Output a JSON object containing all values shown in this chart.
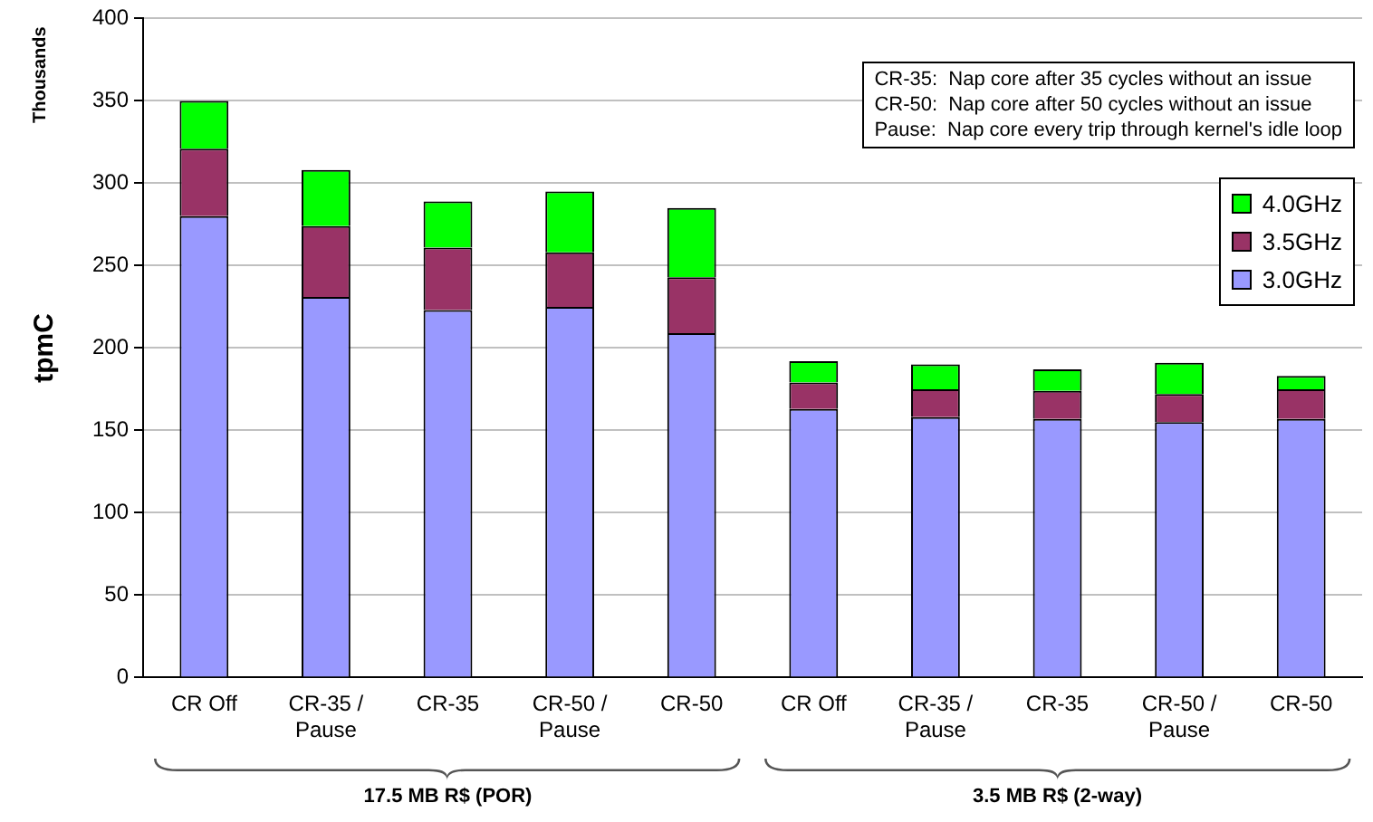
{
  "chart_data": {
    "type": "bar",
    "stacked": true,
    "ylabel": "tpmC",
    "categories": [
      "CR Off",
      "CR-35 /\nPause",
      "CR-35",
      "CR-50 /\nPause",
      "CR-50",
      "CR Off",
      "CR-35 /\nPause",
      "CR-35",
      "CR-50 /\nPause",
      "CR-50"
    ],
    "series": [
      {
        "name": "3.0GHz",
        "color": "#9999ff",
        "values": [
          280,
          231,
          223,
          225,
          209,
          163,
          158,
          157,
          155,
          157
        ]
      },
      {
        "name": "3.5GHz",
        "color": "#993366",
        "values": [
          41,
          43,
          38,
          33,
          34,
          16,
          17,
          17,
          17,
          18
        ]
      },
      {
        "name": "4.0GHz",
        "color": "#00ff00",
        "values": [
          29,
          34,
          28,
          37,
          42,
          13,
          15,
          13,
          19,
          8
        ]
      }
    ],
    "ylim": [
      0,
      400
    ],
    "yticks": [
      0,
      50,
      100,
      150,
      200,
      250,
      300,
      350,
      400
    ],
    "grid": "y",
    "legend": "top right",
    "annotations": [
      "CR-35:  Nap core after 35 cycles without an issue\nCR-50:  Nap core after 50 cycles without an issue\nPause:  Nap core every trip through kernel's idle loop",
      "Thousands",
      "17.5 MB R$ (POR)",
      "3.5 MB R$ (2-way)"
    ]
  }
}
